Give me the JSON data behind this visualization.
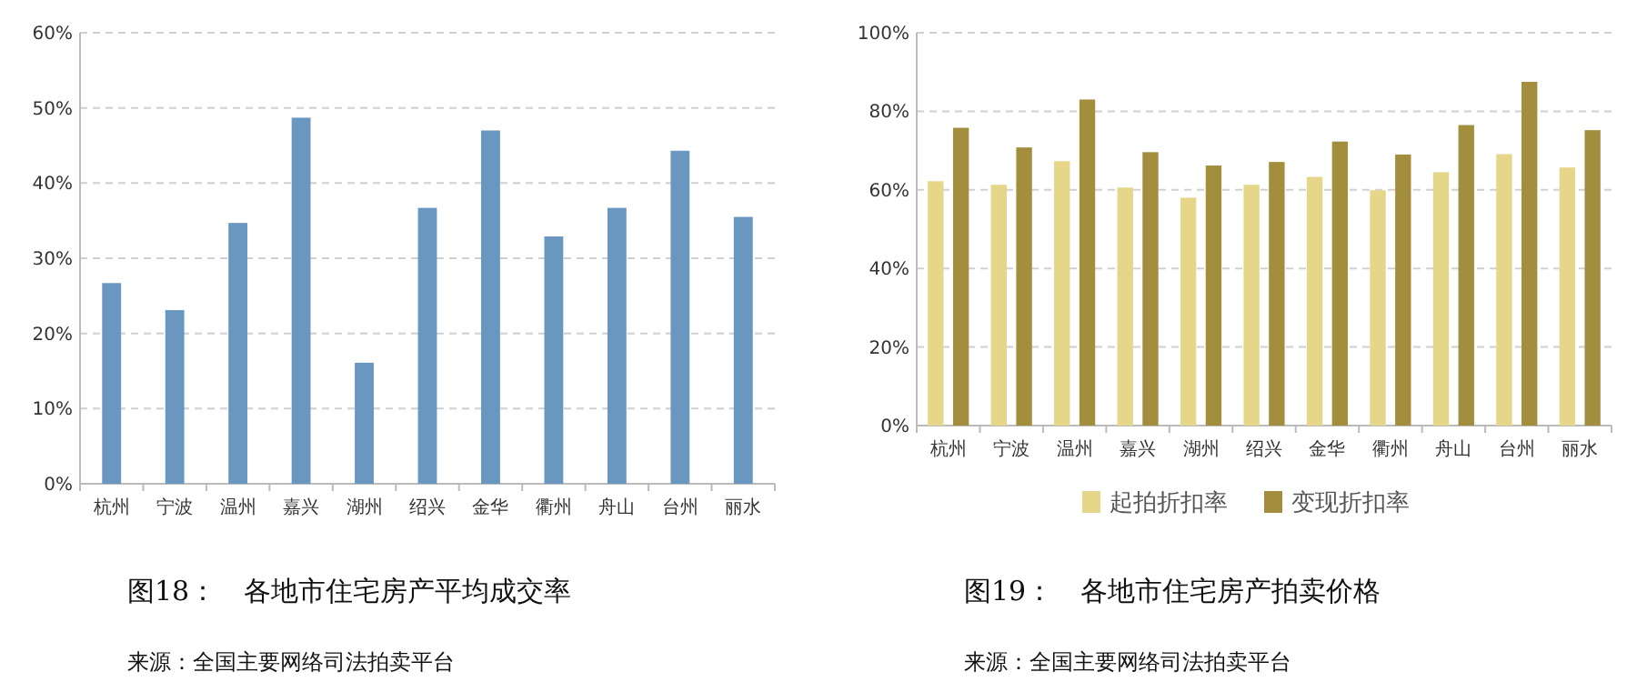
{
  "chart_data": [
    {
      "type": "bar",
      "title": "图18：　各地市住宅房产平均成交率",
      "annotations": [
        "来源：全国主要网络司法拍卖平台"
      ],
      "categories": [
        "杭州",
        "宁波",
        "温州",
        "嘉兴",
        "湖州",
        "绍兴",
        "金华",
        "衢州",
        "舟山",
        "台州",
        "丽水"
      ],
      "series": [
        {
          "color": "#6a97c0",
          "values": [
            26.7,
            23.1,
            34.7,
            48.7,
            16.1,
            36.7,
            47.0,
            32.9,
            36.7,
            44.3,
            35.5
          ]
        }
      ],
      "ylim": [
        0,
        60
      ],
      "yticks": [
        {
          "value": 0,
          "label": "0%"
        },
        {
          "value": 10,
          "label": "10%"
        },
        {
          "value": 20,
          "label": "20%"
        },
        {
          "value": 30,
          "label": "30%"
        },
        {
          "value": 40,
          "label": "40%"
        },
        {
          "value": 50,
          "label": "50%"
        },
        {
          "value": 60,
          "label": "60%"
        }
      ],
      "grid": "y",
      "legend": false
    },
    {
      "type": "bar",
      "title": "图19：　各地市住宅房产拍卖价格",
      "annotations": [
        "来源：全国主要网络司法拍卖平台"
      ],
      "categories": [
        "杭州",
        "宁波",
        "温州",
        "嘉兴",
        "湖州",
        "绍兴",
        "金华",
        "衢州",
        "舟山",
        "台州",
        "丽水"
      ],
      "series": [
        {
          "name": "起拍折扣率",
          "color": "#e6d68a",
          "values": [
            62.2,
            61.3,
            67.3,
            60.6,
            58.0,
            61.3,
            63.3,
            59.9,
            64.5,
            69.1,
            65.7
          ]
        },
        {
          "name": "变现折扣率",
          "color": "#a38e3d",
          "values": [
            75.8,
            70.8,
            83.0,
            69.6,
            66.2,
            67.1,
            72.3,
            69.0,
            76.5,
            87.5,
            75.2
          ]
        }
      ],
      "ylim": [
        0,
        100
      ],
      "yticks": [
        {
          "value": 0,
          "label": "0%"
        },
        {
          "value": 20,
          "label": "20%"
        },
        {
          "value": 40,
          "label": "40%"
        },
        {
          "value": 60,
          "label": "60%"
        },
        {
          "value": 80,
          "label": "80%"
        },
        {
          "value": 100,
          "label": "100%"
        }
      ],
      "grid": "y",
      "legend": "bottom"
    }
  ]
}
